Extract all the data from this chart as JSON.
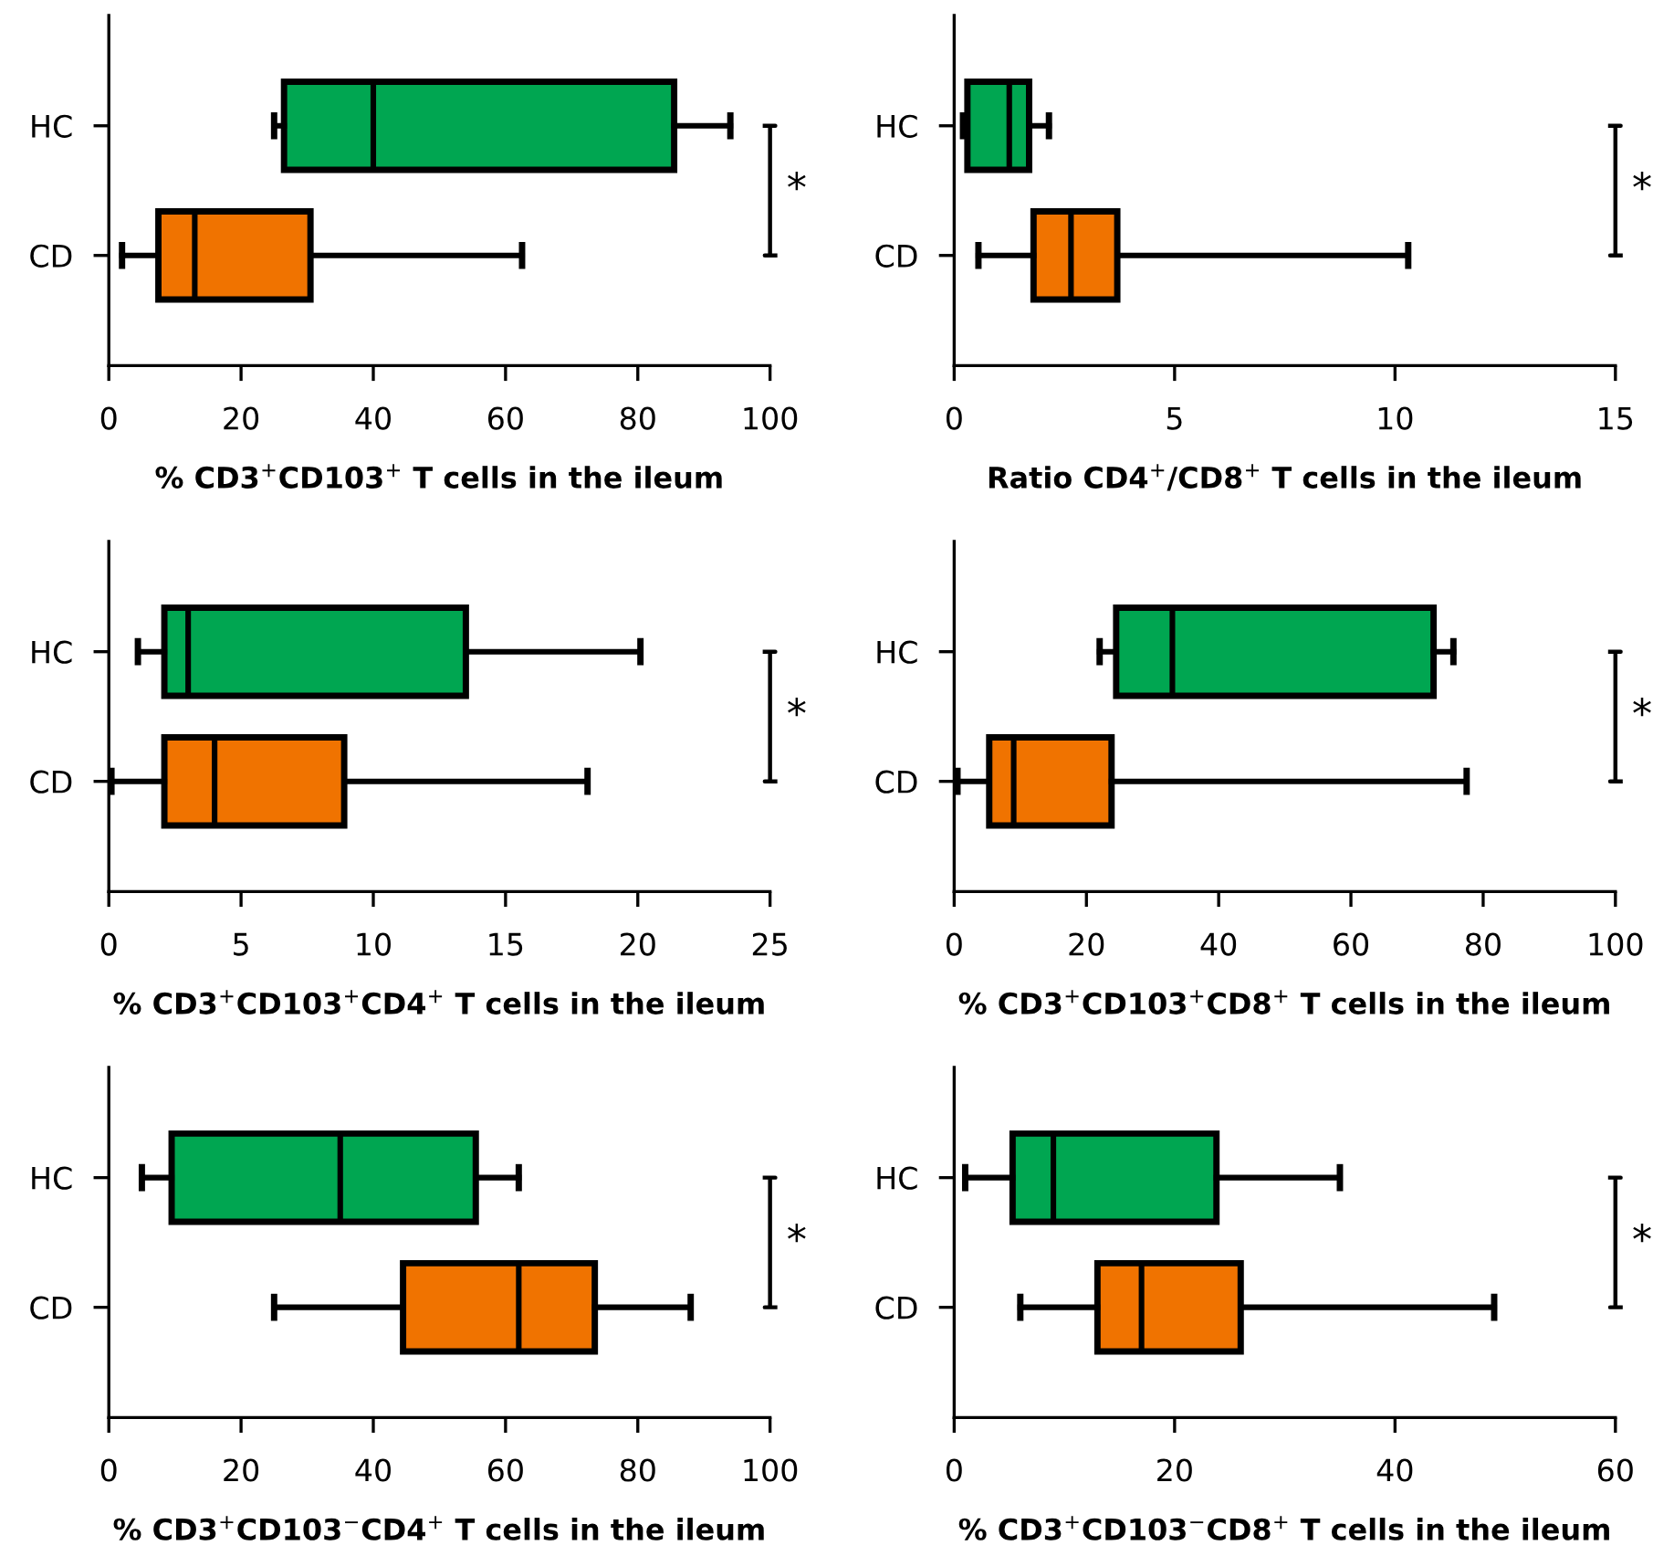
{
  "chart_data": [
    {
      "type": "box",
      "orientation": "horizontal",
      "categories": [
        "HC",
        "CD"
      ],
      "colors": [
        "#00a651",
        "#f07300"
      ],
      "xlabel": "% CD3$^{+}$CD103$^{+}$ T cells in the ileum",
      "xlim": [
        0,
        100
      ],
      "xticks": [
        0,
        20,
        40,
        60,
        80,
        100
      ],
      "annotations": [
        "*"
      ],
      "boxes": [
        {
          "low": 25,
          "q1": 26.5,
          "median": 40,
          "q3": 85.5,
          "high": 94
        },
        {
          "low": 2,
          "q1": 7.5,
          "median": 13,
          "q3": 30.5,
          "high": 62.5
        }
      ]
    },
    {
      "type": "box",
      "orientation": "horizontal",
      "categories": [
        "HC",
        "CD"
      ],
      "colors": [
        "#00a651",
        "#f07300"
      ],
      "xlabel": "Ratio CD4$^{+}$/CD8$^{+}$ T cells in the ileum",
      "xlim": [
        0,
        15
      ],
      "xticks": [
        0,
        5,
        10,
        15
      ],
      "annotations": [
        "*"
      ],
      "boxes": [
        {
          "low": 0.2,
          "q1": 0.3,
          "median": 1.25,
          "q3": 1.7,
          "high": 2.15
        },
        {
          "low": 0.55,
          "q1": 1.8,
          "median": 2.65,
          "q3": 3.7,
          "high": 10.3
        }
      ]
    },
    {
      "type": "box",
      "orientation": "horizontal",
      "categories": [
        "HC",
        "CD"
      ],
      "colors": [
        "#00a651",
        "#f07300"
      ],
      "xlabel": "% CD3$^{+}$CD103$^{+}$CD4$^{+}$ T cells in the ileum",
      "xlim": [
        0,
        25
      ],
      "xticks": [
        0,
        5,
        10,
        15,
        20,
        25
      ],
      "annotations": [
        "*"
      ],
      "boxes": [
        {
          "low": 1.1,
          "q1": 2.1,
          "median": 3.0,
          "q3": 13.5,
          "high": 20.1
        },
        {
          "low": 0.1,
          "q1": 2.1,
          "median": 4.0,
          "q3": 8.9,
          "high": 18.1
        }
      ]
    },
    {
      "type": "box",
      "orientation": "horizontal",
      "categories": [
        "HC",
        "CD"
      ],
      "colors": [
        "#00a651",
        "#f07300"
      ],
      "xlabel": "% CD3$^{+}$CD103$^{+}$CD8$^{+}$ T cells in the ileum",
      "xlim": [
        0,
        100
      ],
      "xticks": [
        0,
        20,
        40,
        60,
        80,
        100
      ],
      "annotations": [
        "*"
      ],
      "boxes": [
        {
          "low": 22,
          "q1": 24.5,
          "median": 33,
          "q3": 72.5,
          "high": 75.5
        },
        {
          "low": 0.5,
          "q1": 5.3,
          "median": 9,
          "q3": 23.8,
          "high": 77.5
        }
      ]
    },
    {
      "type": "box",
      "orientation": "horizontal",
      "categories": [
        "HC",
        "CD"
      ],
      "colors": [
        "#00a651",
        "#f07300"
      ],
      "xlabel": "% CD3$^{+}$CD103$^{−}$CD4$^{+}$ T cells in the ileum",
      "xlim": [
        0,
        100
      ],
      "xticks": [
        0,
        20,
        40,
        60,
        80,
        100
      ],
      "annotations": [
        "*"
      ],
      "boxes": [
        {
          "low": 5,
          "q1": 9.5,
          "median": 35,
          "q3": 55.5,
          "high": 62
        },
        {
          "low": 25,
          "q1": 44.5,
          "median": 62,
          "q3": 73.5,
          "high": 88
        }
      ]
    },
    {
      "type": "box",
      "orientation": "horizontal",
      "categories": [
        "HC",
        "CD"
      ],
      "colors": [
        "#00a651",
        "#f07300"
      ],
      "xlabel": "% CD3$^{+}$CD103$^{−}$CD8$^{+}$ T cells in the ileum",
      "xlim": [
        0,
        60
      ],
      "xticks": [
        0,
        20,
        40,
        60
      ],
      "annotations": [
        "*"
      ],
      "boxes": [
        {
          "low": 1,
          "q1": 5.3,
          "median": 9,
          "q3": 23.8,
          "high": 35
        },
        {
          "low": 6,
          "q1": 13,
          "median": 17,
          "q3": 26,
          "high": 49
        }
      ]
    }
  ]
}
